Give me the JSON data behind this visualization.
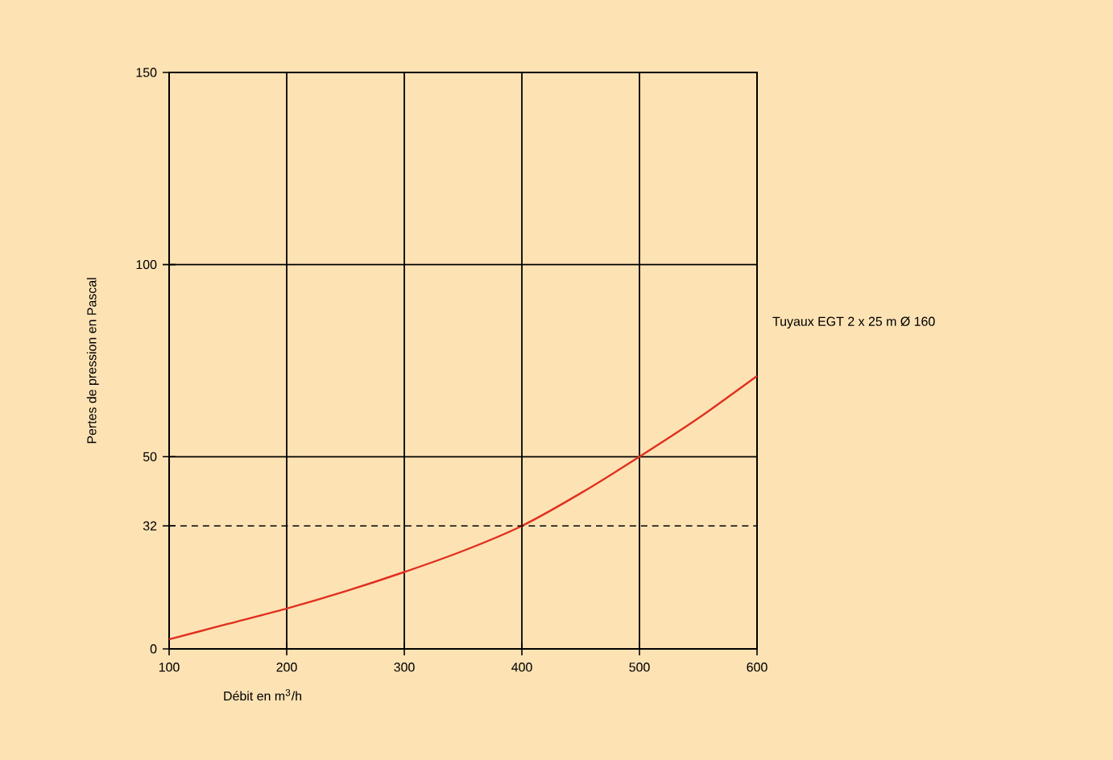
{
  "chart_data": {
    "type": "line",
    "xlabel": "Débit en m$^{3}$/h",
    "ylabel": "Pertes de pression en Pascal",
    "x": [
      100,
      150,
      200,
      250,
      300,
      350,
      400,
      450,
      500,
      550,
      600
    ],
    "series": [
      {
        "name": "Tuyaux EGT 2 x 25 m Ø 160",
        "color": "#e0301e",
        "values": [
          2.5,
          6.5,
          10.5,
          15,
          20,
          25.5,
          32,
          40.5,
          50,
          60,
          71
        ]
      }
    ],
    "xlim": [
      100,
      600
    ],
    "ylim": [
      0,
      150
    ],
    "xticks": [
      100,
      200,
      300,
      400,
      500,
      600
    ],
    "yticks": [
      0,
      32,
      50,
      100,
      150
    ],
    "ref_lines": [
      {
        "axis": "y",
        "value": 32,
        "line_style": "dashed"
      }
    ],
    "grid": true,
    "marker": "none",
    "line_style": "solid"
  }
}
